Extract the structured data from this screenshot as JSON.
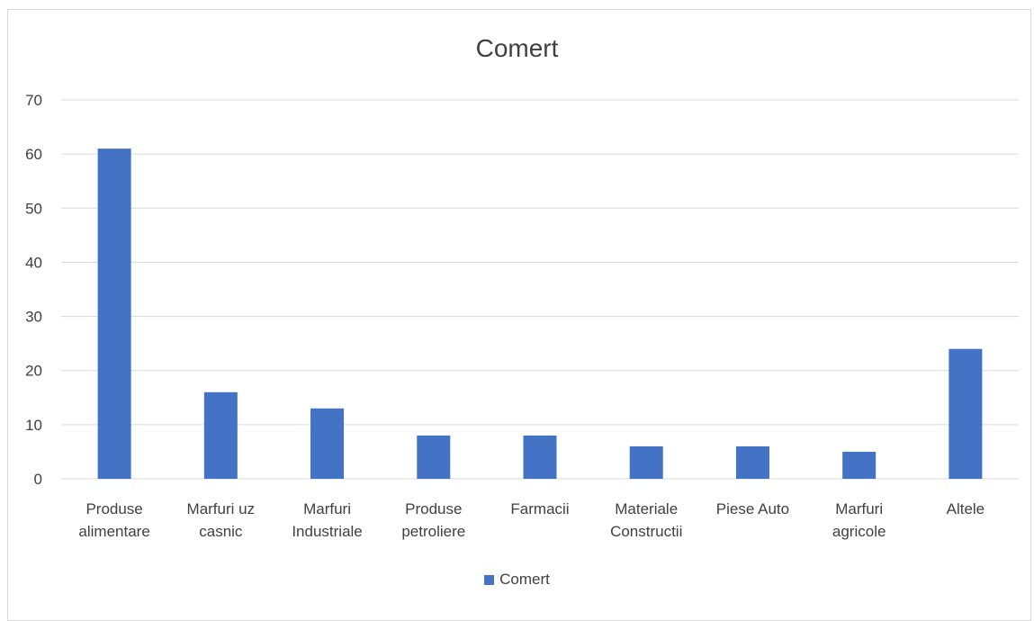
{
  "chart_data": {
    "type": "bar",
    "title": "Comert",
    "xlabel": "",
    "ylabel": "",
    "categories": [
      [
        "Produse",
        "alimentare"
      ],
      [
        "Marfuri uz",
        "casnic"
      ],
      [
        "Marfuri",
        "Industriale"
      ],
      [
        "Produse",
        "petroliere"
      ],
      [
        "Farmacii"
      ],
      [
        "Materiale",
        "Constructii"
      ],
      [
        "Piese Auto"
      ],
      [
        "Marfuri",
        "agricole"
      ],
      [
        "Altele"
      ]
    ],
    "series": [
      {
        "name": "Comert",
        "values": [
          61,
          16,
          13,
          8,
          8,
          6,
          6,
          5,
          24
        ]
      }
    ],
    "ylim": [
      0,
      70
    ],
    "yticks": [
      0,
      10,
      20,
      30,
      40,
      50,
      60,
      70
    ],
    "grid": true,
    "legend_position": "bottom",
    "colors": {
      "bar": "#4472C4",
      "grid": "#d9d9d9",
      "text": "#404040"
    }
  }
}
